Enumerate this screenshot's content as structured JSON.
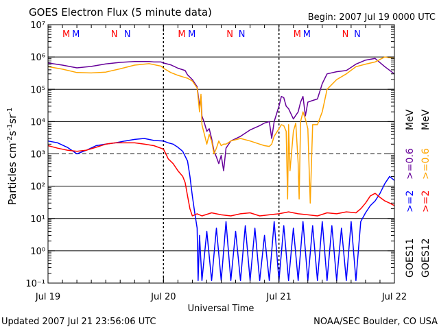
{
  "title": "GOES Electron Flux (5 minute data)",
  "begin_label": "Begin: 2007 Jul 19 0000 UTC",
  "footer_left": "Updated 2007 Jul 21 23:56:06 UTC",
  "footer_right": "NOAA/SEC Boulder, CO USA",
  "chart_data": {
    "type": "line",
    "title": "GOES Electron Flux (5 minute data)",
    "xlabel": "Universal Time",
    "ylabel": "Particles cm⁻²s⁻¹sr⁻¹",
    "yscale": "log",
    "ylim": [
      0.1,
      10000000
    ],
    "xlim": [
      0,
      72
    ],
    "x_unit": "hours since 2007 Jul 19 0000 UTC",
    "x_ticks": [
      {
        "x": 0,
        "label": "Jul 19"
      },
      {
        "x": 24,
        "label": "Jul 20"
      },
      {
        "x": 48,
        "label": "Jul 21"
      },
      {
        "x": 72,
        "label": "Jul 22"
      }
    ],
    "y_ticks": [
      "10⁻¹",
      "10⁰",
      "10¹",
      "10²",
      "10³",
      "10⁴",
      "10⁵",
      "10⁶",
      "10⁷"
    ],
    "y_tick_exponents": [
      -1,
      0,
      1,
      2,
      3,
      4,
      5,
      6,
      7
    ],
    "horizontal_lines": [
      {
        "y": 1,
        "style": "solid"
      },
      {
        "y": 10,
        "style": "solid"
      },
      {
        "y": 100,
        "style": "solid"
      },
      {
        "y": 1000,
        "style": "dashed"
      },
      {
        "y": 10000,
        "style": "solid"
      },
      {
        "y": 100000,
        "style": "solid"
      },
      {
        "y": 1000000,
        "style": "solid"
      }
    ],
    "day_boundaries": [
      24,
      48
    ],
    "satellites": [
      "GOES11",
      "GOES12"
    ],
    "energy_labels": [
      {
        "sat": "GOES11",
        "label": ">=2",
        "color": "#0000ff"
      },
      {
        "sat": "GOES11",
        "label": ">=0.6",
        "color": "#660099"
      },
      {
        "sat": "GOES12",
        "label": ">=2",
        "color": "#ff0000"
      },
      {
        "sat": "GOES12",
        "label": ">=0.6",
        "color": "#ffa500"
      }
    ],
    "unit_label": "MeV",
    "noon_midnight_markers": [
      {
        "x": 3.8,
        "label": "M",
        "color": "#ff0000"
      },
      {
        "x": 5.8,
        "label": "M",
        "color": "#0000ff"
      },
      {
        "x": 13.8,
        "label": "N",
        "color": "#ff0000"
      },
      {
        "x": 16.5,
        "label": "N",
        "color": "#0000ff"
      },
      {
        "x": 27.8,
        "label": "M",
        "color": "#ff0000"
      },
      {
        "x": 29.9,
        "label": "M",
        "color": "#0000ff"
      },
      {
        "x": 37.8,
        "label": "N",
        "color": "#ff0000"
      },
      {
        "x": 40.3,
        "label": "N",
        "color": "#0000ff"
      },
      {
        "x": 51.8,
        "label": "M",
        "color": "#ff0000"
      },
      {
        "x": 53.8,
        "label": "M",
        "color": "#0000ff"
      },
      {
        "x": 61.8,
        "label": "N",
        "color": "#ff0000"
      },
      {
        "x": 64.3,
        "label": "N",
        "color": "#0000ff"
      }
    ],
    "series": [
      {
        "sat": "GOES11",
        "energy": ">=0.6 MeV",
        "color": "#660099",
        "x": [
          0,
          3,
          6,
          9,
          12,
          15,
          18,
          21,
          22,
          23.5,
          24,
          25.5,
          27,
          28.5,
          29,
          30,
          31,
          31.5,
          31.8,
          32,
          32.5,
          33,
          33.5,
          34,
          34.5,
          35,
          35.5,
          36,
          36.5,
          37,
          38,
          40,
          42,
          44,
          45,
          46,
          46.5,
          47,
          48,
          48.5,
          49,
          49.5,
          50,
          51,
          52,
          52.5,
          53,
          53.5,
          54,
          55,
          56,
          57,
          58,
          60,
          62,
          64,
          66,
          68,
          70,
          72
        ],
        "y": [
          650000,
          560000,
          460000,
          510000,
          610000,
          680000,
          720000,
          720000,
          700000,
          700000,
          650000,
          570000,
          450000,
          380000,
          280000,
          200000,
          120000,
          30000,
          60000,
          15000,
          9000,
          5000,
          6000,
          3000,
          1200,
          800,
          500,
          900,
          300,
          1500,
          2500,
          3500,
          5500,
          7500,
          9000,
          10000,
          3000,
          10000,
          30000,
          60000,
          55000,
          30000,
          25000,
          12000,
          20000,
          40000,
          60000,
          15000,
          40000,
          45000,
          50000,
          150000,
          300000,
          350000,
          380000,
          600000,
          800000,
          900000,
          500000,
          300000
        ]
      },
      {
        "sat": "GOES12",
        "energy": ">=0.6 MeV",
        "color": "#ffa500",
        "x": [
          0,
          3,
          6,
          9,
          12,
          15,
          18,
          21,
          22,
          23.5,
          24,
          25.5,
          27,
          28.5,
          29,
          30,
          31,
          31.5,
          31.8,
          32,
          32.5,
          33,
          33.5,
          34,
          34.5,
          35,
          35.5,
          36,
          36.5,
          37,
          38,
          40,
          42,
          44,
          45,
          46,
          46.5,
          47,
          48,
          48.5,
          49,
          49.5,
          49.8,
          50,
          50.3,
          51,
          51.5,
          52,
          52.2,
          52.5,
          53,
          53.5,
          54,
          54.5,
          55,
          56,
          57,
          58,
          60,
          62,
          64,
          66,
          68,
          70,
          72
        ],
        "y": [
          500000,
          420000,
          330000,
          320000,
          340000,
          430000,
          560000,
          620000,
          580000,
          520000,
          450000,
          330000,
          270000,
          230000,
          220000,
          180000,
          110000,
          20000,
          70000,
          8000,
          4000,
          2000,
          4000,
          2500,
          1000,
          1500,
          2500,
          1800,
          2000,
          2000,
          2500,
          3000,
          2500,
          2000,
          1800,
          1700,
          2000,
          3500,
          6000,
          8000,
          7500,
          5000,
          40,
          8000,
          300,
          5000,
          9000,
          500,
          40,
          10000,
          20000,
          12000,
          6000,
          30,
          8000,
          8000,
          20000,
          100000,
          200000,
          300000,
          500000,
          600000,
          700000,
          1000000,
          900000
        ]
      },
      {
        "sat": "GOES11",
        "energy": ">=2 MeV",
        "color": "#0000ff",
        "x": [
          0,
          2,
          4,
          6,
          8,
          10,
          12,
          14,
          16,
          18,
          20,
          22,
          24,
          25,
          26,
          27,
          28,
          29,
          29.5,
          30,
          30.5,
          31,
          31.2,
          31.5,
          32,
          33,
          34,
          35,
          36,
          37,
          38,
          39,
          40,
          41,
          42,
          43,
          44,
          45,
          46,
          47,
          48,
          49,
          50,
          51,
          52,
          53,
          54,
          55,
          56,
          57,
          58,
          59,
          60,
          61,
          62,
          63,
          64,
          65,
          66,
          67,
          68,
          69,
          70,
          71,
          72
        ],
        "y": [
          2500,
          2200,
          1600,
          1000,
          1300,
          1800,
          2000,
          2200,
          2500,
          2800,
          3000,
          2600,
          2500,
          2200,
          2000,
          1600,
          1200,
          600,
          200,
          50,
          15,
          5,
          0.12,
          3,
          0.12,
          4,
          0.12,
          5,
          0.12,
          8,
          0.12,
          4,
          0.12,
          6,
          0.12,
          5,
          0.12,
          3,
          0.12,
          8,
          0.12,
          6,
          0.12,
          5,
          0.12,
          8,
          0.12,
          6,
          0.12,
          8,
          0.12,
          6,
          0.12,
          5,
          0.12,
          8,
          0.12,
          8,
          15,
          25,
          35,
          60,
          120,
          200,
          150
        ]
      },
      {
        "sat": "GOES12",
        "energy": ">=2 MeV",
        "color": "#ff0000",
        "x": [
          0,
          2,
          4,
          6,
          8,
          10,
          12,
          14,
          16,
          18,
          20,
          22,
          24,
          24.5,
          25,
          26,
          27,
          28,
          28.5,
          29,
          29.5,
          30,
          31,
          32,
          34,
          36,
          38,
          40,
          42,
          44,
          46,
          48,
          50,
          52,
          54,
          56,
          58,
          60,
          62,
          64,
          65,
          66,
          67,
          68,
          69,
          70,
          71,
          72
        ],
        "y": [
          1800,
          1500,
          1300,
          1200,
          1300,
          1600,
          2000,
          2200,
          2200,
          2200,
          2000,
          1800,
          1400,
          1000,
          700,
          500,
          300,
          200,
          130,
          50,
          20,
          12,
          14,
          12,
          15,
          13,
          12,
          14,
          15,
          12,
          13,
          14,
          16,
          14,
          13,
          12,
          15,
          14,
          16,
          15,
          20,
          30,
          50,
          60,
          45,
          35,
          30,
          25
        ]
      }
    ]
  }
}
